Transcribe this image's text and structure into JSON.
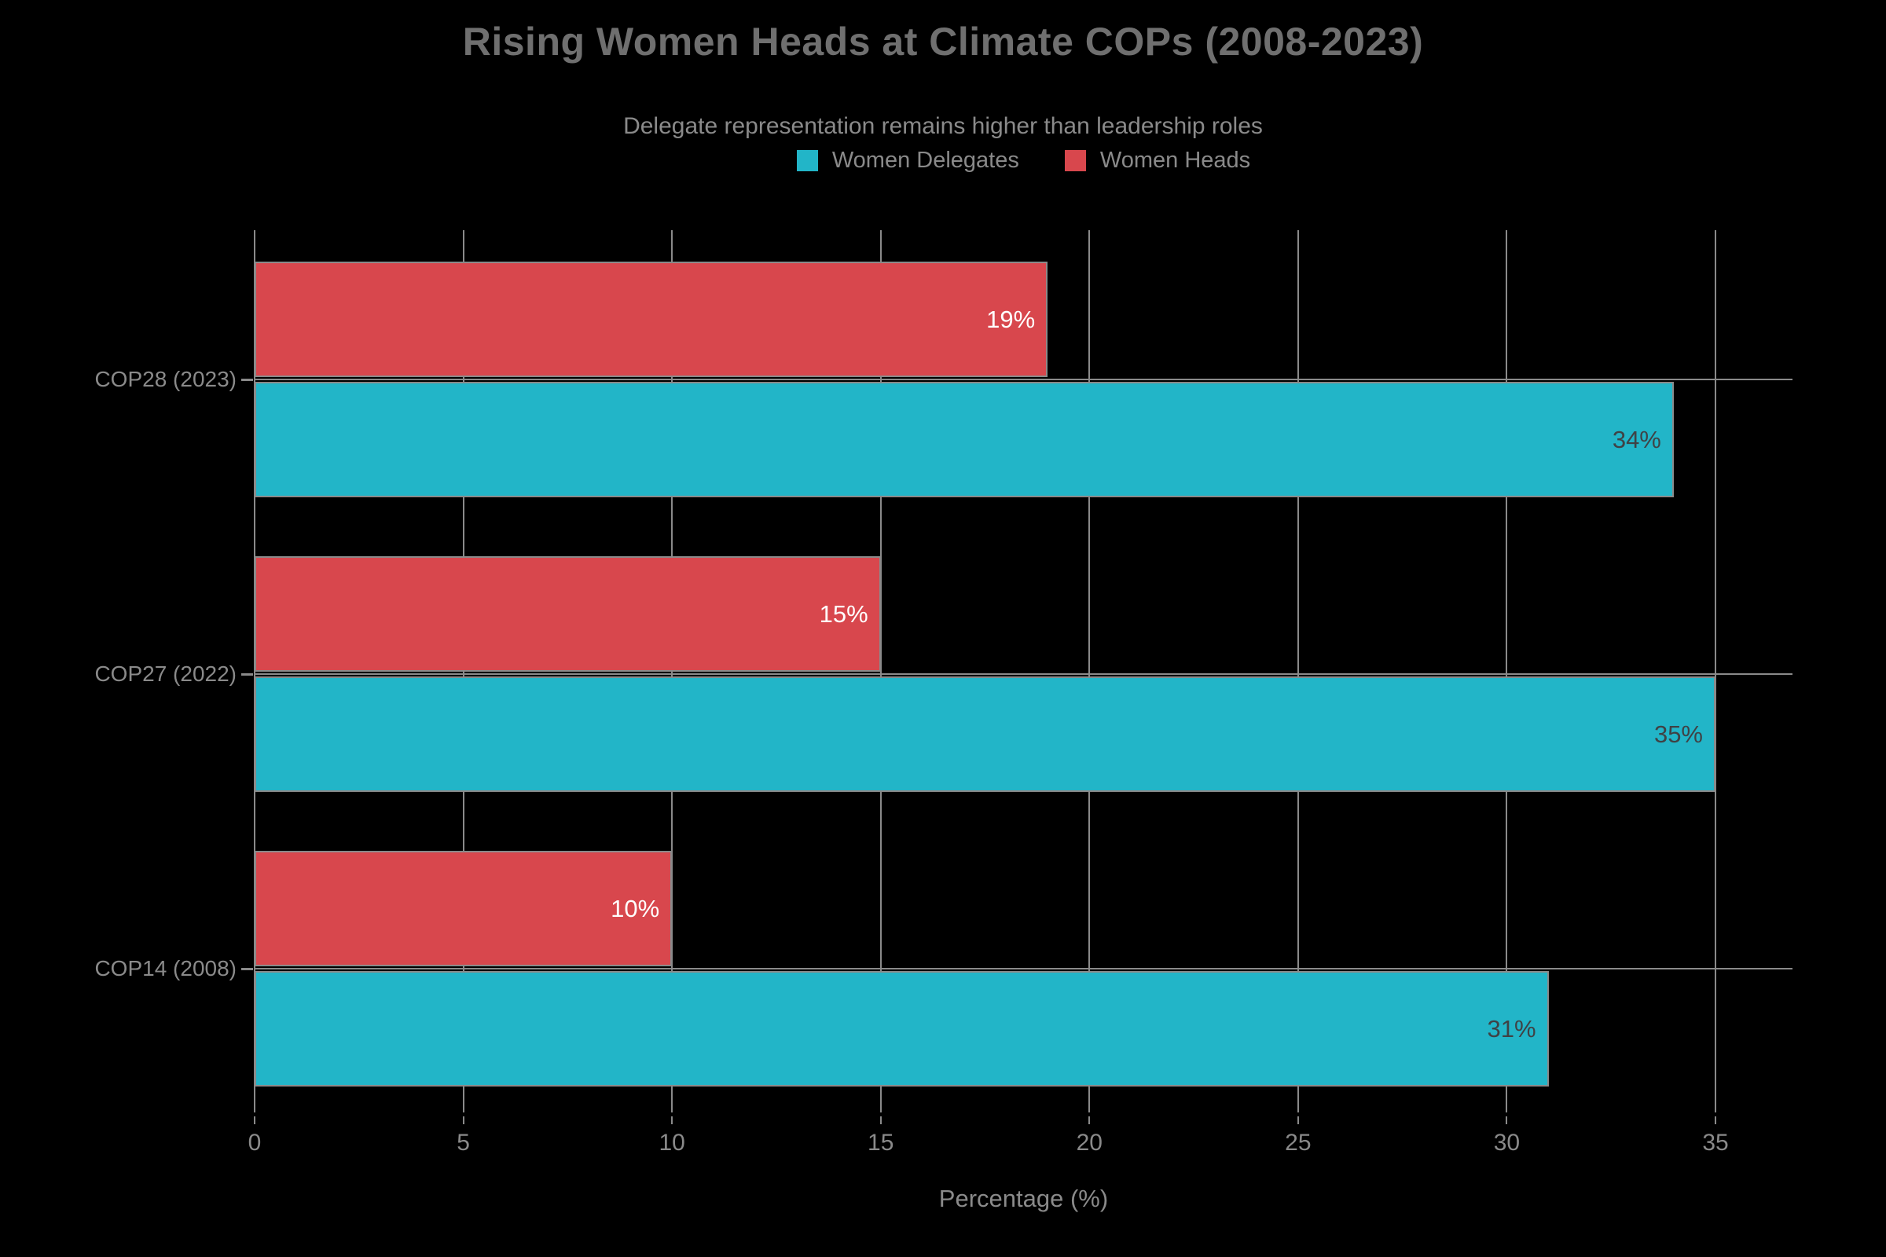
{
  "header": {
    "title": "Rising Women Heads at Climate COPs (2008-2023)",
    "subtitle": "Delegate representation remains higher than leadership roles"
  },
  "axis": {
    "xlabel": "Percentage (%)"
  },
  "colors": {
    "background": "#000000",
    "grid": "#8a8a8a",
    "title_text": "#6f6f6f",
    "axis_text": "#8a8a8a",
    "delegates_teal": "#22b5c8",
    "heads_red": "#d8474d"
  },
  "chart_data": {
    "type": "bar",
    "orientation": "horizontal",
    "title": "Rising Women Heads at Climate COPs (2008-2023)",
    "subtitle": "Delegate representation remains higher than leadership roles",
    "xlabel": "Percentage (%)",
    "categories": [
      "COP28 (2023)",
      "COP27 (2022)",
      "COP14 (2008)"
    ],
    "series": [
      {
        "name": "Women Delegates",
        "values": [
          34,
          35,
          31
        ],
        "color": "#22b5c8",
        "label_color": "#3f4245"
      },
      {
        "name": "Women Heads",
        "values": [
          19,
          15,
          10
        ],
        "color": "#d8474d",
        "label_color": "#ffffff"
      }
    ],
    "value_suffix": "%",
    "x_ticks": [
      0,
      5,
      10,
      15,
      20,
      25,
      30,
      35
    ],
    "xlim": [
      0,
      36.85
    ],
    "grid": true,
    "legend_position": "top"
  }
}
